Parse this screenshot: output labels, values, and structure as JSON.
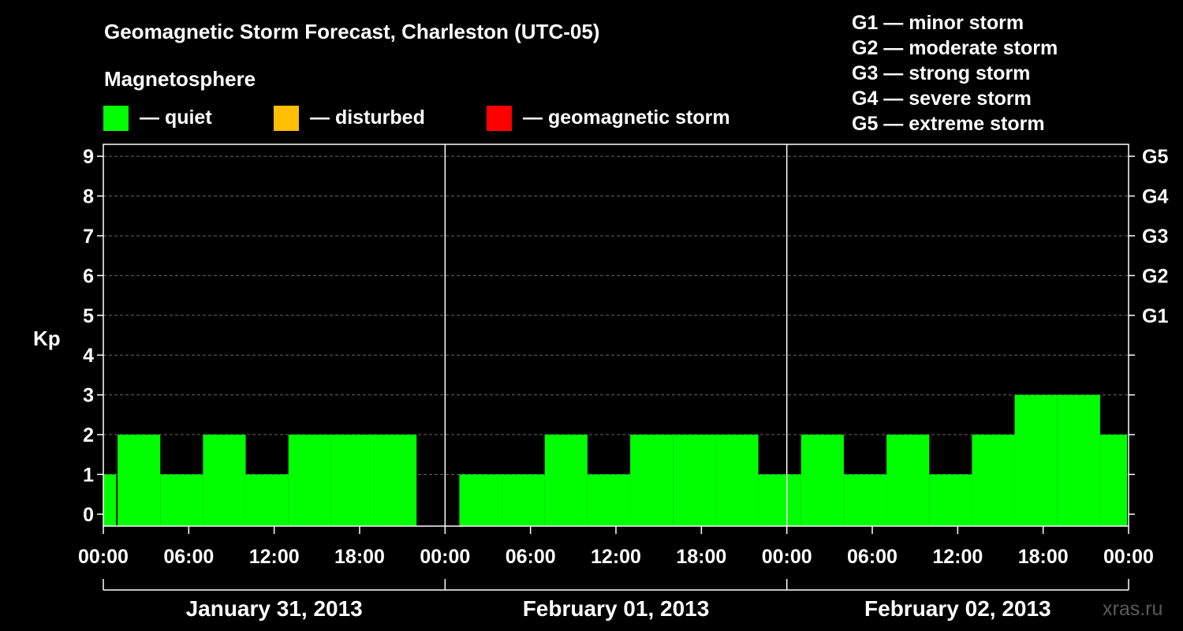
{
  "chart_data": {
    "type": "bar",
    "title": "Geomagnetic Storm Forecast, Charleston (UTC-05)",
    "ylabel": "Kp",
    "ylim": [
      -0.3,
      9.3
    ],
    "yticks": [
      "0",
      "1",
      "2",
      "3",
      "4",
      "5",
      "6",
      "7",
      "8",
      "9"
    ],
    "g_scale": [
      {
        "kp": 5,
        "label": "G1"
      },
      {
        "kp": 6,
        "label": "G2"
      },
      {
        "kp": 7,
        "label": "G3"
      },
      {
        "kp": 8,
        "label": "G4"
      },
      {
        "kp": 9,
        "label": "G5"
      }
    ],
    "g_legend": [
      "G1 — minor storm",
      "G2 — moderate storm",
      "G3 — strong storm",
      "G4 — severe storm",
      "G5 — extreme storm"
    ],
    "legend_title": "Magnetosphere",
    "legend": [
      {
        "label": "— quiet",
        "color": "#00ff00"
      },
      {
        "label": "— disturbed",
        "color": "#ffbf00"
      },
      {
        "label": "— geomagnetic storm",
        "color": "#ff0000"
      }
    ],
    "x_tick_labels": [
      "00:00",
      "06:00",
      "12:00",
      "18:00",
      "00:00",
      "06:00",
      "12:00",
      "18:00",
      "00:00",
      "06:00",
      "12:00",
      "18:00",
      "00:00"
    ],
    "x_tick_hours": [
      0,
      6,
      12,
      18,
      24,
      30,
      36,
      42,
      48,
      54,
      60,
      66,
      72
    ],
    "days": [
      {
        "label": "January 31, 2013",
        "start": 0,
        "end": 24
      },
      {
        "label": "February 01, 2013",
        "start": 24,
        "end": 48
      },
      {
        "label": "February 02, 2013",
        "start": 48,
        "end": 72
      }
    ],
    "bars": [
      {
        "start": 0,
        "end": 0.9,
        "kp": 1
      },
      {
        "start": 1,
        "end": 4,
        "kp": 2
      },
      {
        "start": 4,
        "end": 7,
        "kp": 1
      },
      {
        "start": 7,
        "end": 10,
        "kp": 2
      },
      {
        "start": 10,
        "end": 13,
        "kp": 1
      },
      {
        "start": 13,
        "end": 16,
        "kp": 2
      },
      {
        "start": 16,
        "end": 19,
        "kp": 2
      },
      {
        "start": 19,
        "end": 22,
        "kp": 2
      },
      {
        "start": 25,
        "end": 28,
        "kp": 1
      },
      {
        "start": 28,
        "end": 31,
        "kp": 1
      },
      {
        "start": 31,
        "end": 34,
        "kp": 2
      },
      {
        "start": 34,
        "end": 37,
        "kp": 1
      },
      {
        "start": 37,
        "end": 40,
        "kp": 2
      },
      {
        "start": 40,
        "end": 43,
        "kp": 2
      },
      {
        "start": 43,
        "end": 46,
        "kp": 2
      },
      {
        "start": 46,
        "end": 49,
        "kp": 1
      },
      {
        "start": 49,
        "end": 52,
        "kp": 2
      },
      {
        "start": 52,
        "end": 55,
        "kp": 1
      },
      {
        "start": 55,
        "end": 58,
        "kp": 2
      },
      {
        "start": 58,
        "end": 61,
        "kp": 1
      },
      {
        "start": 61,
        "end": 64,
        "kp": 2
      },
      {
        "start": 64,
        "end": 67,
        "kp": 3
      },
      {
        "start": 67,
        "end": 70,
        "kp": 3
      },
      {
        "start": 70,
        "end": 71.9,
        "kp": 2
      }
    ],
    "bar_color": "#00ff00"
  },
  "watermark": "xras.ru"
}
